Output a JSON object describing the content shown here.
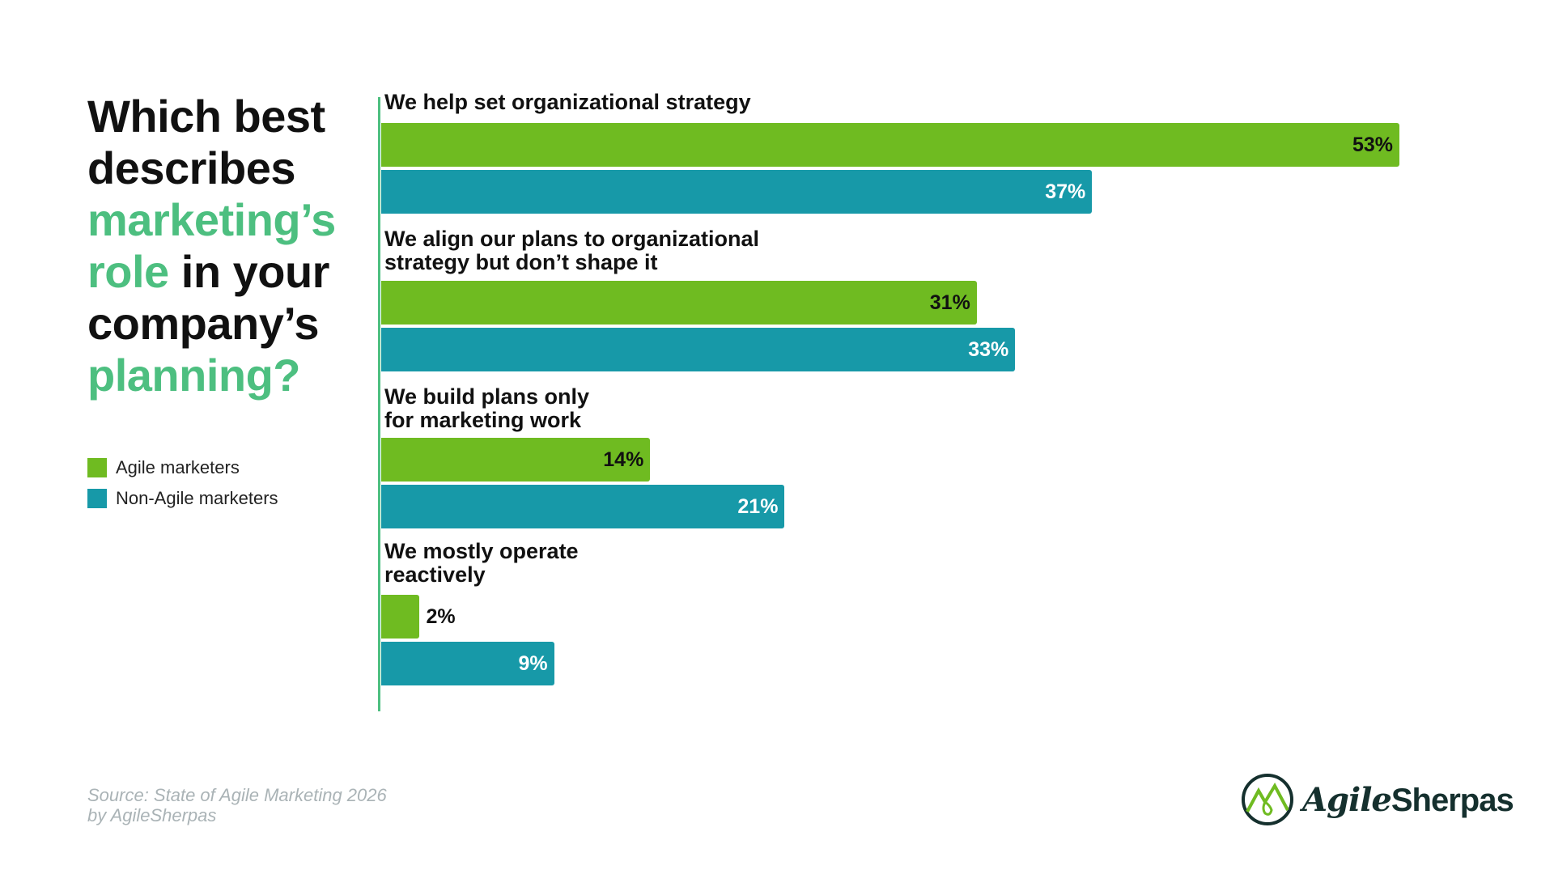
{
  "title": {
    "line1": "Which best",
    "line2": "describes",
    "line3_highlight": "marketing’s",
    "line4_highlight": "role",
    "line4_rest": " in your",
    "line5": "company’s",
    "line6_highlight": "planning?"
  },
  "legend": [
    {
      "label": "Agile marketers",
      "color": "#6fbb21"
    },
    {
      "label": "Non-Agile marketers",
      "color": "#1799a8"
    }
  ],
  "source": {
    "line1": "Source: State of Agile Marketing 2026",
    "line2": "by AgileSherpas"
  },
  "logo": {
    "text_a": "Agile",
    "text_b": "Sherpas"
  },
  "chart_data": {
    "type": "bar",
    "orientation": "horizontal",
    "categories": [
      [
        "We help set organizational strategy"
      ],
      [
        "We align our plans to organizational",
        "strategy but don’t shape it"
      ],
      [
        "We build plans only",
        "for marketing work"
      ],
      [
        "We mostly operate",
        "reactively"
      ]
    ],
    "series": [
      {
        "name": "Agile marketers",
        "color": "#6fbb21",
        "values": [
          53,
          31,
          14,
          2
        ],
        "labels": [
          "53%",
          "31%",
          "14%",
          "2%"
        ]
      },
      {
        "name": "Non-Agile marketers",
        "color": "#1799a8",
        "values": [
          37,
          33,
          21,
          9
        ],
        "labels": [
          "37%",
          "33%",
          "21%",
          "9%"
        ]
      }
    ],
    "xlim": [
      0,
      53
    ],
    "grid": false,
    "legend_placement": "left"
  }
}
